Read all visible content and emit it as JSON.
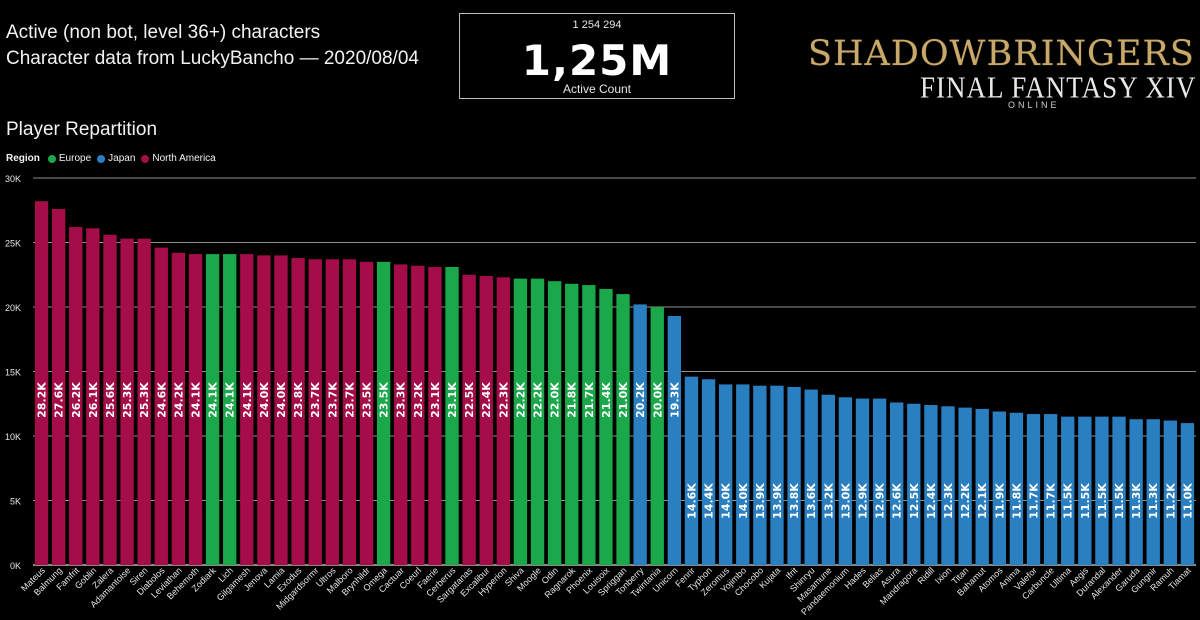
{
  "header": {
    "line1": "Active (non bot, level 36+) characters",
    "line2": "Character data from LuckyBancho — 2020/08/04"
  },
  "kpi": {
    "raw_value": "1 254 294",
    "display_value": "1,25M",
    "label": "Active Count"
  },
  "logo": {
    "main": "SHADOWBRINGERS",
    "sub": "FINAL FANTASY XIV",
    "tag": "ONLINE"
  },
  "section_title": "Player Repartition",
  "legend": {
    "title": "Region",
    "items": [
      {
        "name": "Europe",
        "color": "#1aa84a"
      },
      {
        "name": "Japan",
        "color": "#2a7fc0"
      },
      {
        "name": "North America",
        "color": "#a50d48"
      }
    ]
  },
  "chart_data": {
    "type": "bar",
    "ylim": [
      0,
      30000
    ],
    "yticks": [
      0,
      5000,
      10000,
      15000,
      20000,
      25000,
      30000
    ],
    "ytick_labels": [
      "0K",
      "5K",
      "10K",
      "15K",
      "20K",
      "25K",
      "30K"
    ],
    "grid": true,
    "legend_position": "top-left",
    "categories": [
      "Mateus",
      "Balmung",
      "Famfrit",
      "Goblin",
      "Zalera",
      "Adamantoise",
      "Siren",
      "Diabolos",
      "Leviathan",
      "Behemoth",
      "Zodiark",
      "Lich",
      "Gilgamesh",
      "Jenova",
      "Lamia",
      "Exodus",
      "Midgardsormr",
      "Ultros",
      "Malboro",
      "Brynhildr",
      "Omega",
      "Cactuar",
      "Coeurl",
      "Faerie",
      "Cerberus",
      "Sargatanas",
      "Excalibur",
      "Hyperion",
      "Shiva",
      "Moogle",
      "Odin",
      "Ragnarok",
      "Phoenix",
      "Louisoix",
      "Spriggan",
      "Tonberry",
      "Twintania",
      "Unicorn",
      "Fenrir",
      "Typhon",
      "Zeromus",
      "Yojimbo",
      "Chocobo",
      "Kujata",
      "Ifrit",
      "Shinryu",
      "Masamune",
      "Pandaemonium",
      "Hades",
      "Belias",
      "Asura",
      "Mandragora",
      "Ridill",
      "Ixion",
      "Titan",
      "Bahamut",
      "Atomos",
      "Anima",
      "Valefor",
      "Carbuncle",
      "Ultima",
      "Aegis",
      "Durandal",
      "Alexander",
      "Garuda",
      "Gungnir",
      "Ramuh",
      "Tiamat"
    ],
    "values": [
      28200,
      27600,
      26200,
      26100,
      25600,
      25300,
      25300,
      24600,
      24200,
      24100,
      24100,
      24100,
      24100,
      24000,
      24000,
      23800,
      23700,
      23700,
      23700,
      23500,
      23500,
      23300,
      23200,
      23100,
      23100,
      22500,
      22400,
      22300,
      22200,
      22200,
      22000,
      21800,
      21700,
      21400,
      21000,
      20200,
      20000,
      19300,
      14600,
      14400,
      14000,
      14000,
      13900,
      13900,
      13800,
      13600,
      13200,
      13000,
      12900,
      12900,
      12600,
      12500,
      12400,
      12300,
      12200,
      12100,
      11900,
      11800,
      11700,
      11700,
      11500,
      11500,
      11500,
      11500,
      11300,
      11300,
      11200,
      11000
    ],
    "data_labels": [
      "28.2K",
      "27.6K",
      "26.2K",
      "26.1K",
      "25.6K",
      "25.3K",
      "25.3K",
      "24.6K",
      "24.2K",
      "24.1K",
      "24.1K",
      "24.1K",
      "24.1K",
      "24.0K",
      "24.0K",
      "23.8K",
      "23.7K",
      "23.7K",
      "23.7K",
      "23.5K",
      "23.5K",
      "23.3K",
      "23.2K",
      "23.1K",
      "23.1K",
      "22.5K",
      "22.4K",
      "22.3K",
      "22.2K",
      "22.2K",
      "22.0K",
      "21.8K",
      "21.7K",
      "21.4K",
      "21.0K",
      "20.2K",
      "20.0K",
      "19.3K",
      "14.6K",
      "14.4K",
      "14.0K",
      "14.0K",
      "13.9K",
      "13.9K",
      "13.8K",
      "13.6K",
      "13.2K",
      "13.0K",
      "12.9K",
      "12.9K",
      "12.6K",
      "12.5K",
      "12.4K",
      "12.3K",
      "12.2K",
      "12.1K",
      "11.9K",
      "11.8K",
      "11.7K",
      "11.7K",
      "11.5K",
      "11.5K",
      "11.5K",
      "11.5K",
      "11.3K",
      "11.3K",
      "11.2K",
      "11.0K"
    ],
    "regions": [
      "North America",
      "North America",
      "North America",
      "North America",
      "North America",
      "North America",
      "North America",
      "North America",
      "North America",
      "North America",
      "Europe",
      "Europe",
      "North America",
      "North America",
      "North America",
      "North America",
      "North America",
      "North America",
      "North America",
      "North America",
      "Europe",
      "North America",
      "North America",
      "North America",
      "Europe",
      "North America",
      "North America",
      "North America",
      "Europe",
      "Europe",
      "Europe",
      "Europe",
      "Europe",
      "Europe",
      "Europe",
      "Japan",
      "Europe",
      "Japan",
      "Japan",
      "Japan",
      "Japan",
      "Japan",
      "Japan",
      "Japan",
      "Japan",
      "Japan",
      "Japan",
      "Japan",
      "Japan",
      "Japan",
      "Japan",
      "Japan",
      "Japan",
      "Japan",
      "Japan",
      "Japan",
      "Japan",
      "Japan",
      "Japan",
      "Japan",
      "Japan",
      "Japan",
      "Japan",
      "Japan",
      "Japan",
      "Japan",
      "Japan",
      "Japan"
    ]
  }
}
